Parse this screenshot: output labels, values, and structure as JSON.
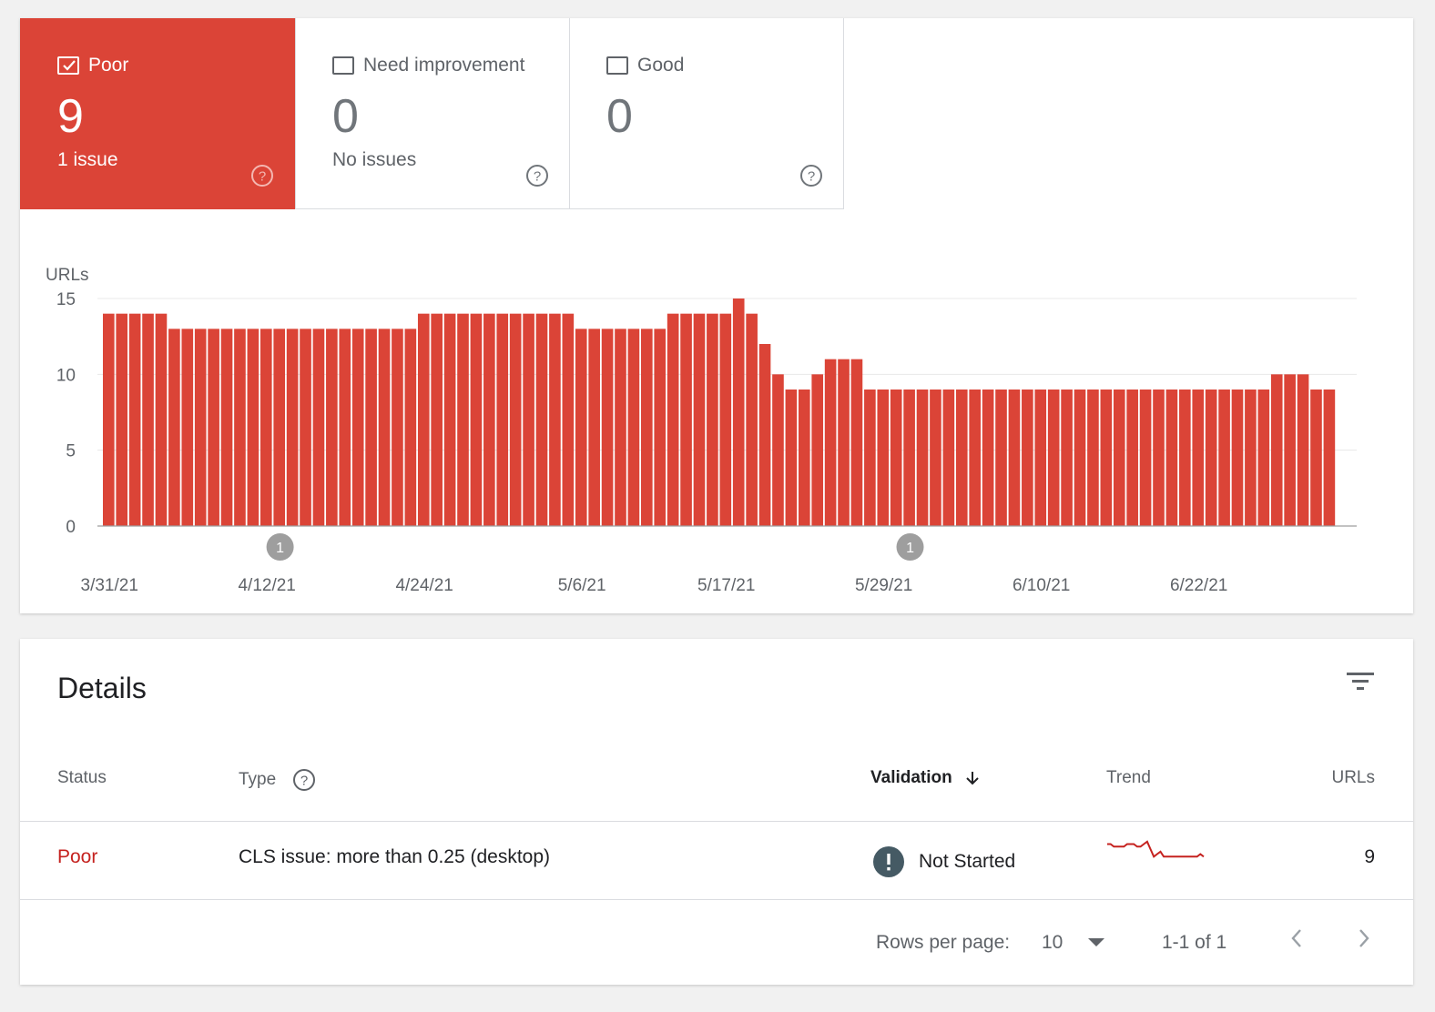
{
  "summary": {
    "poor": {
      "label": "Poor",
      "count": "9",
      "sub": "1 issue",
      "checked": true
    },
    "need_improvement": {
      "label": "Need improvement",
      "count": "0",
      "sub": "No issues",
      "checked": false
    },
    "good": {
      "label": "Good",
      "count": "0",
      "sub": "",
      "checked": false
    }
  },
  "colors": {
    "poor": "#db4437",
    "poor_text": "#c5221f",
    "grid": "#e8e8e8",
    "annotation": "#9e9e9e"
  },
  "chart_data": {
    "type": "bar",
    "ylabel": "URLs",
    "ylim": [
      0,
      15
    ],
    "yticks": [
      0,
      5,
      10,
      15
    ],
    "xtick_labels": [
      "3/31/21",
      "4/12/21",
      "4/24/21",
      "5/6/21",
      "5/17/21",
      "5/29/21",
      "6/10/21",
      "6/22/21"
    ],
    "xtick_indices": [
      0,
      12,
      24,
      36,
      47,
      59,
      71,
      83
    ],
    "start_date": "3/31/21",
    "values": [
      14,
      14,
      14,
      14,
      14,
      13,
      13,
      13,
      13,
      13,
      13,
      13,
      13,
      13,
      13,
      13,
      13,
      13,
      13,
      13,
      13,
      13,
      13,
      13,
      14,
      14,
      14,
      14,
      14,
      14,
      14,
      14,
      14,
      14,
      14,
      14,
      13,
      13,
      13,
      13,
      13,
      13,
      13,
      14,
      14,
      14,
      14,
      14,
      15,
      14,
      12,
      10,
      9,
      9,
      10,
      11,
      11,
      11,
      9,
      9,
      9,
      9,
      9,
      9,
      9,
      9,
      9,
      9,
      9,
      9,
      9,
      9,
      9,
      9,
      9,
      9,
      9,
      9,
      9,
      9,
      9,
      9,
      9,
      9,
      9,
      9,
      9,
      9,
      9,
      10,
      10,
      10,
      9,
      9
    ],
    "annotations": [
      {
        "index": 13,
        "label": "1"
      },
      {
        "index": 61,
        "label": "1"
      }
    ],
    "grid": true
  },
  "details": {
    "title": "Details",
    "columns": {
      "status": "Status",
      "type": "Type",
      "validation": "Validation",
      "trend": "Trend",
      "urls": "URLs"
    },
    "rows": [
      {
        "status": "Poor",
        "type": "CLS issue: more than 0.25 (desktop)",
        "validation": "Not Started",
        "urls": "9"
      }
    ],
    "trend_values": [
      14,
      14,
      13,
      13,
      13,
      13,
      14,
      14,
      14,
      13,
      13,
      14,
      15,
      12,
      9,
      10,
      11,
      9,
      9,
      9,
      9,
      9,
      9,
      9,
      9,
      9,
      9,
      9,
      10,
      9
    ],
    "footer": {
      "rows_per_page_label": "Rows per page:",
      "rows_per_page_value": "10",
      "range": "1-1 of 1"
    }
  }
}
